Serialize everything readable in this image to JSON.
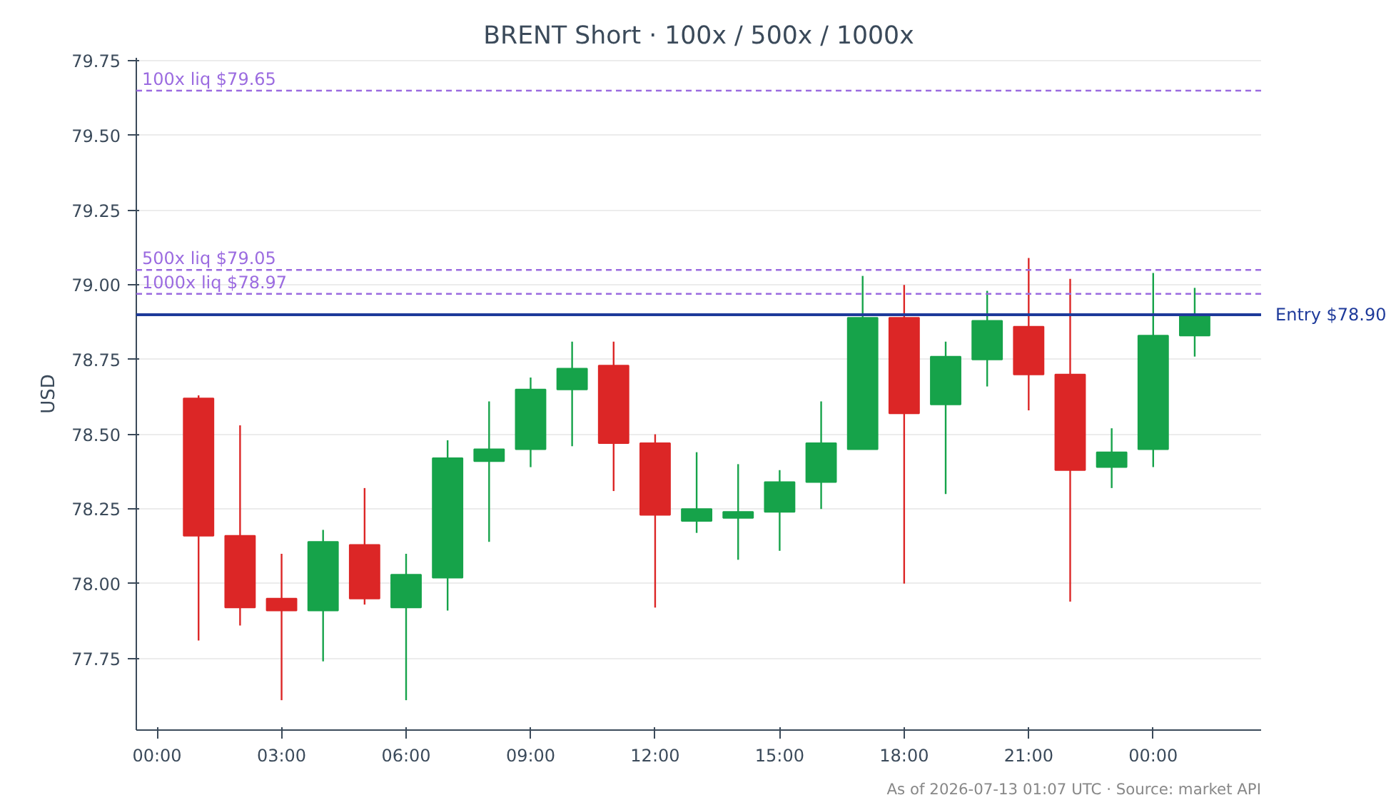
{
  "chart_data": {
    "type": "candlestick",
    "title": "BRENT Short · 100x / 500x / 1000x",
    "ylabel": "USD",
    "x": [
      "2026-07-12T01:00",
      "2026-07-12T02:00",
      "2026-07-12T03:00",
      "2026-07-12T04:00",
      "2026-07-12T05:00",
      "2026-07-12T06:00",
      "2026-07-12T07:00",
      "2026-07-12T08:00",
      "2026-07-12T09:00",
      "2026-07-12T10:00",
      "2026-07-12T11:00",
      "2026-07-12T12:00",
      "2026-07-12T13:00",
      "2026-07-12T14:00",
      "2026-07-12T15:00",
      "2026-07-12T16:00",
      "2026-07-12T17:00",
      "2026-07-12T18:00",
      "2026-07-12T19:00",
      "2026-07-12T20:00",
      "2026-07-12T21:00",
      "2026-07-12T22:00",
      "2026-07-12T23:00",
      "2026-07-13T00:00",
      "2026-07-13T01:00"
    ],
    "ohlc": [
      [
        78.62,
        78.63,
        77.81,
        78.16
      ],
      [
        78.16,
        78.53,
        77.86,
        77.92
      ],
      [
        77.95,
        78.1,
        77.61,
        77.91
      ],
      [
        77.91,
        78.18,
        77.74,
        78.14
      ],
      [
        78.13,
        78.32,
        77.93,
        77.95
      ],
      [
        77.92,
        78.1,
        77.61,
        78.03
      ],
      [
        78.02,
        78.48,
        77.91,
        78.42
      ],
      [
        78.41,
        78.61,
        78.14,
        78.45
      ],
      [
        78.45,
        78.69,
        78.39,
        78.65
      ],
      [
        78.65,
        78.81,
        78.46,
        78.72
      ],
      [
        78.73,
        78.81,
        78.31,
        78.47
      ],
      [
        78.47,
        78.5,
        77.92,
        78.23
      ],
      [
        78.21,
        78.44,
        78.17,
        78.25
      ],
      [
        78.22,
        78.4,
        78.08,
        78.24
      ],
      [
        78.24,
        78.38,
        78.11,
        78.34
      ],
      [
        78.34,
        78.61,
        78.25,
        78.47
      ],
      [
        78.45,
        79.03,
        78.45,
        78.89
      ],
      [
        78.89,
        79.0,
        78.0,
        78.57
      ],
      [
        78.6,
        78.81,
        78.3,
        78.76
      ],
      [
        78.75,
        78.98,
        78.66,
        78.88
      ],
      [
        78.86,
        79.09,
        78.58,
        78.7
      ],
      [
        78.7,
        79.02,
        77.94,
        78.38
      ],
      [
        78.39,
        78.52,
        78.32,
        78.44
      ],
      [
        78.45,
        79.04,
        78.39,
        78.83
      ],
      [
        78.83,
        78.99,
        78.76,
        78.9
      ]
    ],
    "colors": [
      "#dc2626",
      "#dc2626",
      "#dc2626",
      "#16a34a",
      "#dc2626",
      "#16a34a",
      "#16a34a",
      "#16a34a",
      "#16a34a",
      "#16a34a",
      "#dc2626",
      "#dc2626",
      "#16a34a",
      "#16a34a",
      "#16a34a",
      "#16a34a",
      "#16a34a",
      "#dc2626",
      "#16a34a",
      "#16a34a",
      "#dc2626",
      "#dc2626",
      "#16a34a",
      "#16a34a",
      "#16a34a"
    ],
    "xlim": [
      "2026-07-11T23:30",
      "2026-07-13T02:36"
    ],
    "xticks": [
      {
        "value": "2026-07-12T00:00",
        "label": "00:00"
      },
      {
        "value": "2026-07-12T03:00",
        "label": "03:00"
      },
      {
        "value": "2026-07-12T06:00",
        "label": "06:00"
      },
      {
        "value": "2026-07-12T09:00",
        "label": "09:00"
      },
      {
        "value": "2026-07-12T12:00",
        "label": "12:00"
      },
      {
        "value": "2026-07-12T15:00",
        "label": "15:00"
      },
      {
        "value": "2026-07-12T18:00",
        "label": "18:00"
      },
      {
        "value": "2026-07-12T21:00",
        "label": "21:00"
      },
      {
        "value": "2026-07-13T00:00",
        "label": "00:00"
      }
    ],
    "ylim": [
      77.51,
      79.76
    ],
    "yticks": [
      {
        "value": 77.75,
        "label": "77.75"
      },
      {
        "value": 78.0,
        "label": "78.00"
      },
      {
        "value": 78.25,
        "label": "78.25"
      },
      {
        "value": 78.5,
        "label": "78.50"
      },
      {
        "value": 78.75,
        "label": "78.75"
      },
      {
        "value": 79.0,
        "label": "79.00"
      },
      {
        "value": 79.25,
        "label": "79.25"
      },
      {
        "value": 79.5,
        "label": "79.50"
      },
      {
        "value": 79.75,
        "label": "79.75"
      }
    ],
    "grid": "y",
    "ref_lines": [
      {
        "axis": "y",
        "value": 79.65,
        "label": "100x liq $79.65",
        "color": "#9b6be0",
        "line_style": "dashed"
      },
      {
        "axis": "y",
        "value": 79.05,
        "label": "500x liq $79.05",
        "color": "#9b6be0",
        "line_style": "dashed"
      },
      {
        "axis": "y",
        "value": 78.97,
        "label": "1000x liq $78.97",
        "color": "#9b6be0",
        "line_style": "dashed"
      },
      {
        "axis": "y",
        "value": 78.9,
        "label": "Entry $78.90",
        "color": "#1e3a9a",
        "line_style": "solid"
      }
    ],
    "annotations": [
      "As of 2026-07-13 01:07 UTC · Source: market API"
    ]
  }
}
